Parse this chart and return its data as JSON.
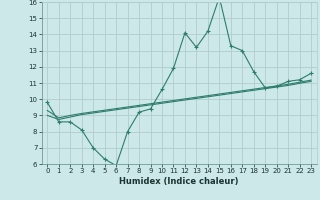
{
  "xlabel": "Humidex (Indice chaleur)",
  "x_values": [
    0,
    1,
    2,
    3,
    4,
    5,
    6,
    7,
    8,
    9,
    10,
    11,
    12,
    13,
    14,
    15,
    16,
    17,
    18,
    19,
    20,
    21,
    22,
    23
  ],
  "line1_y": [
    9.8,
    8.6,
    8.6,
    8.1,
    7.0,
    6.3,
    5.9,
    8.0,
    9.2,
    9.4,
    10.6,
    11.9,
    14.1,
    13.2,
    14.2,
    16.3,
    13.3,
    13.0,
    11.7,
    10.7,
    10.8,
    11.1,
    11.2,
    11.6
  ],
  "line2_y": [
    9.0,
    8.75,
    8.9,
    9.05,
    9.15,
    9.25,
    9.35,
    9.45,
    9.55,
    9.65,
    9.75,
    9.85,
    9.95,
    10.05,
    10.15,
    10.25,
    10.35,
    10.45,
    10.55,
    10.65,
    10.75,
    10.85,
    10.98,
    11.1
  ],
  "line3_y": [
    9.3,
    8.85,
    9.0,
    9.12,
    9.22,
    9.32,
    9.42,
    9.52,
    9.62,
    9.72,
    9.82,
    9.92,
    10.02,
    10.12,
    10.22,
    10.32,
    10.42,
    10.52,
    10.62,
    10.72,
    10.82,
    10.92,
    11.05,
    11.18
  ],
  "line_color": "#2d7d6b",
  "bg_color": "#cce8e8",
  "grid_color": "#b0cccc",
  "ylim": [
    6,
    16
  ],
  "xlim": [
    -0.5,
    23.5
  ],
  "yticks": [
    6,
    7,
    8,
    9,
    10,
    11,
    12,
    13,
    14,
    15,
    16
  ],
  "xticks": [
    0,
    1,
    2,
    3,
    4,
    5,
    6,
    7,
    8,
    9,
    10,
    11,
    12,
    13,
    14,
    15,
    16,
    17,
    18,
    19,
    20,
    21,
    22,
    23
  ]
}
